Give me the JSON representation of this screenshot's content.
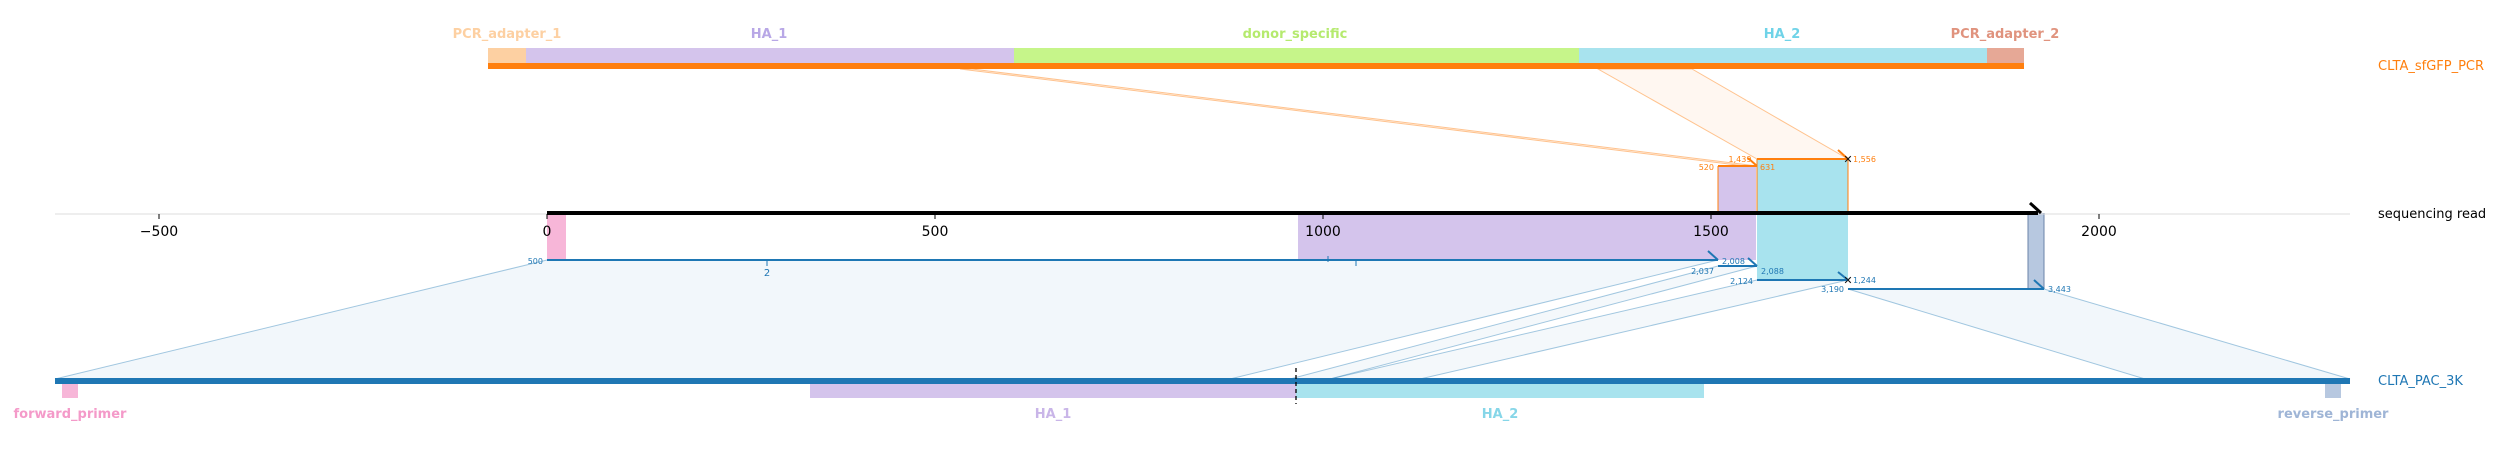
{
  "read": {
    "label": "sequencing read",
    "axis_ticks": [
      -500,
      0,
      500,
      1000,
      1500,
      2000
    ],
    "axis_tick_labels": [
      "−500",
      "0",
      "500",
      "1000",
      "1500",
      "2000"
    ],
    "length": 1932
  },
  "reference_top": {
    "name": "CLTA_sfGFP_PCR",
    "color": "#ff7f0e",
    "features": [
      {
        "name": "PCR_adapter_1",
        "color": "#fdd0a2",
        "label_color": "#fdd0a2"
      },
      {
        "name": "HA_1",
        "color": "#d4c4ec",
        "label_color": "#b8a7e6"
      },
      {
        "name": "donor_specific",
        "color": "#c6f58a",
        "label_color": "#b5ea6e"
      },
      {
        "name": "HA_2",
        "color": "#a8e3ee",
        "label_color": "#6fd3e8"
      },
      {
        "name": "PCR_adapter_2",
        "color": "#e6a896",
        "label_color": "#e0937e"
      }
    ]
  },
  "reference_bottom": {
    "name": "CLTA_PAC_3K",
    "color": "#1f77b4",
    "features": [
      {
        "name": "forward_primer",
        "color": "#f7b6d8",
        "label_color": "#f49ac9"
      },
      {
        "name": "HA_1",
        "color": "#d4c4ec",
        "label_color": "#c9b5e8"
      },
      {
        "name": "HA_2",
        "color": "#a8e3ee",
        "label_color": "#86d6e8"
      },
      {
        "name": "reverse_primer",
        "color": "#b7c8e0",
        "label_color": "#9fb5d6"
      }
    ]
  },
  "alignments_top": {
    "labels": [
      "1,439",
      "1,556",
      "520",
      "631"
    ]
  },
  "alignments_bottom": {
    "labels": [
      "500",
      "2",
      "2,008",
      "2,037",
      "2,088",
      "2,124",
      "1,244",
      "3,190",
      "3,443"
    ]
  }
}
